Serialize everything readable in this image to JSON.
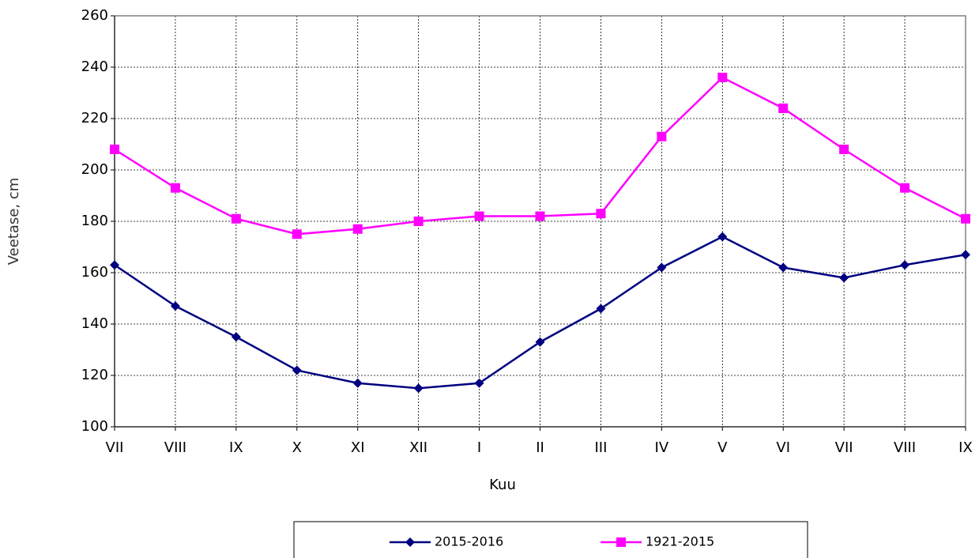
{
  "chart_data": {
    "type": "line",
    "x_label": "Kuu",
    "y_label": "Veetase, cm",
    "categories": [
      "VII",
      "VIII",
      "IX",
      "X",
      "XI",
      "XII",
      "I",
      "II",
      "III",
      "IV",
      "V",
      "VI",
      "VII",
      "VIII",
      "IX"
    ],
    "series": [
      {
        "name": "2015-2016",
        "color": "#000080",
        "marker": "diamond",
        "values": [
          163,
          147,
          135,
          122,
          117,
          115,
          117,
          133,
          146,
          162,
          174,
          162,
          158,
          163,
          167
        ]
      },
      {
        "name": "1921-2015",
        "color": "#ff00ff",
        "marker": "square",
        "values": [
          208,
          193,
          181,
          175,
          177,
          180,
          182,
          182,
          183,
          213,
          236,
          224,
          208,
          193,
          181
        ]
      }
    ],
    "ylim": [
      100,
      260
    ],
    "yticks": [
      100,
      120,
      140,
      160,
      180,
      200,
      220,
      240,
      260
    ],
    "grid": true,
    "legend": "bottom"
  }
}
